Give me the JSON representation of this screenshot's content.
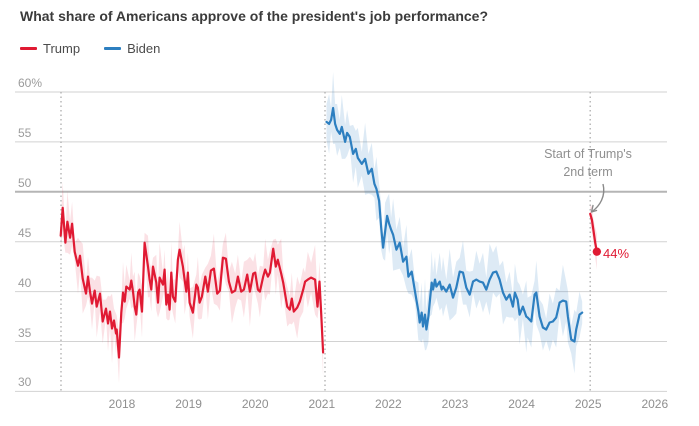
{
  "chart_data": {
    "type": "line",
    "title": "What share of Americans approve of the president's job performance?",
    "xlabel": "",
    "ylabel": "",
    "y_axis": {
      "unit": "%",
      "range": [
        30,
        60
      ],
      "ticks": [
        {
          "value": 60,
          "label": "60%"
        },
        {
          "value": 55,
          "label": "55"
        },
        {
          "value": 50,
          "label": "50"
        },
        {
          "value": 45,
          "label": "45"
        },
        {
          "value": 40,
          "label": "40"
        },
        {
          "value": 35,
          "label": "35"
        },
        {
          "value": 30,
          "label": "30"
        }
      ],
      "emphasized_tick": 50
    },
    "x_axis": {
      "ticks": [
        2018,
        2019,
        2020,
        2021,
        2022,
        2023,
        2024,
        2025,
        2026
      ],
      "range": [
        2016.9,
        2026.2
      ]
    },
    "term_start_lines": [
      2017.084,
      2021.048,
      2025.03
    ],
    "legend": [
      {
        "name": "Trump",
        "color": "#e01a33"
      },
      {
        "name": "Biden",
        "color": "#2d7fc0"
      }
    ],
    "annotation": {
      "line1": "Start of Trump's",
      "line2": "2nd term"
    },
    "end_label": {
      "text": "44%",
      "value": 44
    },
    "colors": {
      "gridline": "#d2d2d2",
      "gridline_emphasized": "#b5b5b5",
      "dotted_line": "#b3b3b3",
      "arrow": "#8a8a8a",
      "trump_band": "rgba(224,26,51,0.13)",
      "biden_band": "rgba(45,127,192,0.16)"
    },
    "series": [
      {
        "name": "Trump",
        "color": "#e01a33",
        "band_color": "rgba(224,26,51,0.13)",
        "band_cycle": [
          1.4,
          2.6,
          1.0,
          3.1,
          1.7,
          2.2,
          0.9,
          2.8,
          1.5,
          3.5,
          1.2,
          2.0
        ],
        "points": [
          [
            2017.08,
            45.6
          ],
          [
            2017.11,
            48.4
          ],
          [
            2017.15,
            44.9
          ],
          [
            2017.18,
            47.0
          ],
          [
            2017.22,
            45.4
          ],
          [
            2017.25,
            46.8
          ],
          [
            2017.29,
            44.0
          ],
          [
            2017.34,
            42.6
          ],
          [
            2017.37,
            43.6
          ],
          [
            2017.41,
            41.3
          ],
          [
            2017.46,
            39.8
          ],
          [
            2017.49,
            41.5
          ],
          [
            2017.52,
            40.0
          ],
          [
            2017.55,
            38.8
          ],
          [
            2017.59,
            40.1
          ],
          [
            2017.62,
            38.5
          ],
          [
            2017.67,
            39.8
          ],
          [
            2017.71,
            37.0
          ],
          [
            2017.76,
            38.3
          ],
          [
            2017.79,
            36.8
          ],
          [
            2017.82,
            38.0
          ],
          [
            2017.85,
            36.3
          ],
          [
            2017.88,
            37.1
          ],
          [
            2017.91,
            35.8
          ],
          [
            2017.92,
            36.2
          ],
          [
            2017.955,
            33.4
          ],
          [
            2017.99,
            37.9
          ],
          [
            2018.015,
            39.9
          ],
          [
            2018.04,
            39.0
          ],
          [
            2018.065,
            40.5
          ],
          [
            2018.115,
            40.2
          ],
          [
            2018.14,
            41.1
          ],
          [
            2018.165,
            40.0
          ],
          [
            2018.19,
            38.5
          ],
          [
            2018.215,
            37.7
          ],
          [
            2018.24,
            39.9
          ],
          [
            2018.265,
            40.2
          ],
          [
            2018.3,
            38.0
          ],
          [
            2018.34,
            44.9
          ],
          [
            2018.39,
            42.5
          ],
          [
            2018.415,
            41.2
          ],
          [
            2018.44,
            40.2
          ],
          [
            2018.465,
            42.5
          ],
          [
            2018.515,
            40.9
          ],
          [
            2018.54,
            38.9
          ],
          [
            2018.565,
            41.4
          ],
          [
            2018.615,
            40.7
          ],
          [
            2018.64,
            42.2
          ],
          [
            2018.665,
            38.7
          ],
          [
            2018.69,
            39.7
          ],
          [
            2018.715,
            38.2
          ],
          [
            2018.74,
            41.9
          ],
          [
            2018.765,
            39.5
          ],
          [
            2018.8,
            39.0
          ],
          [
            2018.84,
            43.2
          ],
          [
            2018.865,
            44.2
          ],
          [
            2018.915,
            42.5
          ],
          [
            2018.94,
            41.2
          ],
          [
            2018.965,
            40.0
          ],
          [
            2018.99,
            41.9
          ],
          [
            2019.015,
            38.9
          ],
          [
            2019.065,
            37.9
          ],
          [
            2019.115,
            40.7
          ],
          [
            2019.14,
            40.4
          ],
          [
            2019.165,
            38.9
          ],
          [
            2019.2,
            39.5
          ],
          [
            2019.25,
            41.5
          ],
          [
            2019.29,
            40.0
          ],
          [
            2019.335,
            42.1
          ],
          [
            2019.38,
            42.3
          ],
          [
            2019.43,
            39.8
          ],
          [
            2019.47,
            40.1
          ],
          [
            2019.515,
            43.4
          ],
          [
            2019.56,
            43.3
          ],
          [
            2019.605,
            41.0
          ],
          [
            2019.65,
            39.9
          ],
          [
            2019.7,
            40.1
          ],
          [
            2019.74,
            41.5
          ],
          [
            2019.79,
            40.0
          ],
          [
            2019.83,
            40.2
          ],
          [
            2019.88,
            41.7
          ],
          [
            2019.92,
            40.0
          ],
          [
            2019.97,
            41.8
          ],
          [
            2020.0,
            41.9
          ],
          [
            2020.04,
            40.2
          ],
          [
            2020.07,
            40.0
          ],
          [
            2020.12,
            41.5
          ],
          [
            2020.15,
            42.2
          ],
          [
            2020.19,
            41.5
          ],
          [
            2020.22,
            41.9
          ],
          [
            2020.27,
            44.3
          ],
          [
            2020.31,
            42.5
          ],
          [
            2020.34,
            43.2
          ],
          [
            2020.39,
            41.8
          ],
          [
            2020.42,
            40.9
          ],
          [
            2020.48,
            38.5
          ],
          [
            2020.52,
            38.2
          ],
          [
            2020.55,
            39.3
          ],
          [
            2020.58,
            38.0
          ],
          [
            2020.63,
            38.4
          ],
          [
            2020.67,
            39.0
          ],
          [
            2020.72,
            40.2
          ],
          [
            2020.75,
            41.0
          ],
          [
            2020.79,
            41.2
          ],
          [
            2020.84,
            41.4
          ],
          [
            2020.9,
            41.2
          ],
          [
            2020.935,
            38.5
          ],
          [
            2020.965,
            41.0
          ],
          [
            2020.99,
            38.0
          ],
          [
            2021.02,
            33.9
          ]
        ]
      },
      {
        "name": "Biden",
        "color": "#2d7fc0",
        "band_color": "rgba(45,127,192,0.16)",
        "band_cycle": [
          1.8,
          3.0,
          1.2,
          3.6,
          2.0,
          2.6,
          1.4,
          3.2,
          1.7,
          2.3,
          1.1,
          2.9
        ],
        "points": [
          [
            2021.07,
            57.0
          ],
          [
            2021.11,
            56.8
          ],
          [
            2021.14,
            57.2
          ],
          [
            2021.17,
            58.4
          ],
          [
            2021.2,
            56.8
          ],
          [
            2021.23,
            56.2
          ],
          [
            2021.27,
            55.8
          ],
          [
            2021.3,
            56.5
          ],
          [
            2021.35,
            55.0
          ],
          [
            2021.38,
            55.9
          ],
          [
            2021.42,
            55.5
          ],
          [
            2021.47,
            53.8
          ],
          [
            2021.51,
            54.3
          ],
          [
            2021.54,
            53.4
          ],
          [
            2021.6,
            52.8
          ],
          [
            2021.65,
            53.3
          ],
          [
            2021.7,
            51.8
          ],
          [
            2021.75,
            52.3
          ],
          [
            2021.79,
            50.8
          ],
          [
            2021.82,
            50.3
          ],
          [
            2021.86,
            49.1
          ],
          [
            2021.89,
            46.5
          ],
          [
            2021.92,
            44.4
          ],
          [
            2021.95,
            46.0
          ],
          [
            2021.98,
            47.6
          ],
          [
            2022.01,
            46.8
          ],
          [
            2022.04,
            46.2
          ],
          [
            2022.07,
            45.7
          ],
          [
            2022.12,
            44.2
          ],
          [
            2022.17,
            44.9
          ],
          [
            2022.22,
            43.0
          ],
          [
            2022.27,
            43.5
          ],
          [
            2022.3,
            41.5
          ],
          [
            2022.35,
            42.0
          ],
          [
            2022.4,
            40.0
          ],
          [
            2022.45,
            38.0
          ],
          [
            2022.47,
            36.9
          ],
          [
            2022.5,
            37.9
          ],
          [
            2022.52,
            36.5
          ],
          [
            2022.55,
            37.7
          ],
          [
            2022.57,
            36.2
          ],
          [
            2022.6,
            37.5
          ],
          [
            2022.62,
            38.9
          ],
          [
            2022.65,
            40.9
          ],
          [
            2022.67,
            40.2
          ],
          [
            2022.7,
            41.2
          ],
          [
            2022.72,
            40.5
          ],
          [
            2022.77,
            41.0
          ],
          [
            2022.8,
            40.2
          ],
          [
            2022.82,
            40.5
          ],
          [
            2022.87,
            40.0
          ],
          [
            2022.92,
            40.7
          ],
          [
            2022.97,
            39.4
          ],
          [
            2023.02,
            40.4
          ],
          [
            2023.07,
            42.0
          ],
          [
            2023.12,
            41.9
          ],
          [
            2023.17,
            40.4
          ],
          [
            2023.22,
            39.7
          ],
          [
            2023.27,
            41.0
          ],
          [
            2023.32,
            41.2
          ],
          [
            2023.37,
            41.0
          ],
          [
            2023.42,
            40.9
          ],
          [
            2023.47,
            40.2
          ],
          [
            2023.52,
            41.2
          ],
          [
            2023.57,
            41.9
          ],
          [
            2023.62,
            42.0
          ],
          [
            2023.67,
            41.2
          ],
          [
            2023.72,
            39.9
          ],
          [
            2023.77,
            39.2
          ],
          [
            2023.82,
            39.7
          ],
          [
            2023.87,
            38.5
          ],
          [
            2023.9,
            39.9
          ],
          [
            2023.94,
            39.2
          ],
          [
            2023.97,
            37.7
          ],
          [
            2024.02,
            38.5
          ],
          [
            2024.07,
            37.5
          ],
          [
            2024.09,
            37.4
          ],
          [
            2024.145,
            37.0
          ],
          [
            2024.195,
            39.7
          ],
          [
            2024.22,
            39.9
          ],
          [
            2024.27,
            37.5
          ],
          [
            2024.32,
            36.4
          ],
          [
            2024.37,
            36.2
          ],
          [
            2024.42,
            36.9
          ],
          [
            2024.47,
            37.0
          ],
          [
            2024.52,
            37.4
          ],
          [
            2024.57,
            38.9
          ],
          [
            2024.62,
            39.1
          ],
          [
            2024.67,
            39.0
          ],
          [
            2024.695,
            37.5
          ],
          [
            2024.745,
            35.2
          ],
          [
            2024.795,
            35.0
          ],
          [
            2024.82,
            36.2
          ],
          [
            2024.87,
            37.7
          ],
          [
            2024.91,
            37.9
          ]
        ]
      },
      {
        "name": "Trump 2nd term",
        "color": "#e01a33",
        "band_color": "rgba(224,26,51,0.13)",
        "band_cycle": [
          1.0,
          1.3,
          1.1,
          1.5,
          1.8
        ],
        "end_dot": true,
        "points": [
          [
            2025.03,
            47.8
          ],
          [
            2025.055,
            47.2
          ],
          [
            2025.08,
            46.1
          ],
          [
            2025.105,
            44.9
          ],
          [
            2025.13,
            44.0
          ]
        ]
      }
    ]
  }
}
